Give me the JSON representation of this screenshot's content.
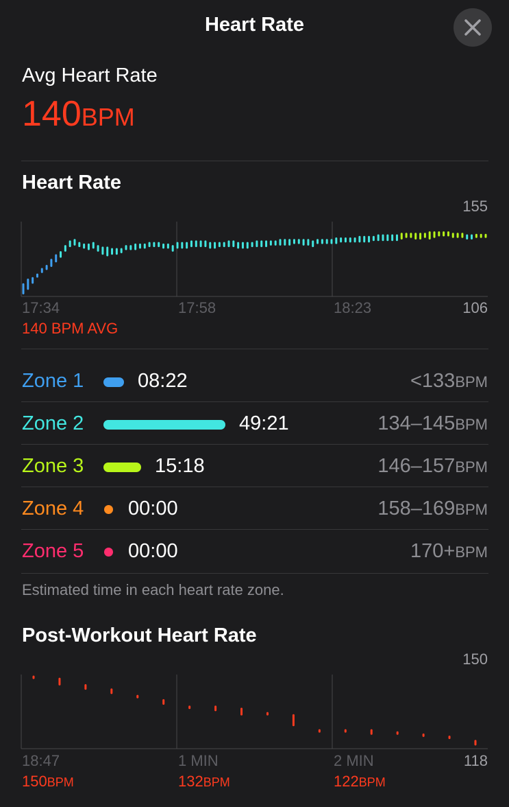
{
  "header": {
    "title": "Heart Rate"
  },
  "summary": {
    "label": "Avg Heart Rate",
    "value": "140",
    "unit": "BPM"
  },
  "heart_rate_section": {
    "title": "Heart Rate",
    "y_max_label": "155",
    "y_min_label": "106",
    "avg_label": "140 BPM AVG",
    "x_labels": [
      "17:34",
      "17:58",
      "18:23"
    ]
  },
  "zones": [
    {
      "name": "Zone 1",
      "time": "08:22",
      "range": "<133",
      "unit": "BPM",
      "color": "#3f9ff0",
      "fraction": 0.116
    },
    {
      "name": "Zone 2",
      "time": "49:21",
      "range": "134–145",
      "unit": "BPM",
      "color": "#42e6e0",
      "fraction": 0.685
    },
    {
      "name": "Zone 3",
      "time": "15:18",
      "range": "146–157",
      "unit": "BPM",
      "color": "#b8f51a",
      "fraction": 0.212
    },
    {
      "name": "Zone 4",
      "time": "00:00",
      "range": "158–169",
      "unit": "BPM",
      "color": "#ff8a1f",
      "fraction": 0
    },
    {
      "name": "Zone 5",
      "time": "00:00",
      "range": "170+",
      "unit": "BPM",
      "color": "#ff2d6e",
      "fraction": 0
    }
  ],
  "zone_note": "Estimated time in each heart rate zone.",
  "post_workout": {
    "title": "Post-Workout Heart Rate",
    "y_max_label": "150",
    "y_min_label": "118",
    "x_labels": [
      "18:47",
      "1 MIN",
      "2 MIN"
    ],
    "values": [
      {
        "value": "150",
        "unit": "BPM"
      },
      {
        "value": "132",
        "unit": "BPM"
      },
      {
        "value": "122",
        "unit": "BPM"
      }
    ]
  },
  "chart_data": [
    {
      "type": "bar",
      "title": "Heart Rate",
      "ylim": [
        106,
        155
      ],
      "x_tick_labels": [
        "17:34",
        "17:58",
        "18:23"
      ],
      "values_low": [
        108,
        111,
        115,
        119,
        122,
        124,
        126,
        129,
        132,
        136,
        139,
        140,
        139,
        138,
        137,
        138,
        136,
        134,
        133,
        134,
        134,
        135,
        137,
        137,
        137,
        138,
        138,
        139,
        139,
        139,
        138,
        138,
        136,
        138,
        138,
        138,
        139,
        139,
        139,
        139,
        138,
        138,
        139,
        139,
        139,
        139,
        138,
        138,
        138,
        139,
        139,
        139,
        139,
        140,
        140,
        140,
        140,
        140,
        141,
        141,
        140,
        140,
        139,
        141,
        141,
        141,
        141,
        141,
        142,
        142,
        142,
        142,
        142,
        142,
        142,
        143,
        143,
        143,
        143,
        143,
        143,
        144,
        145,
        145,
        144,
        144,
        145,
        144,
        145,
        146,
        146,
        146,
        145,
        145,
        145,
        144,
        144,
        145,
        145,
        145
      ],
      "values_high": [
        114,
        117,
        118,
        120,
        124,
        126,
        130,
        133,
        135,
        139,
        142,
        143,
        141,
        140,
        140,
        141,
        139,
        138,
        138,
        137,
        137,
        137,
        139,
        139,
        140,
        140,
        140,
        141,
        141,
        141,
        140,
        140,
        139,
        141,
        141,
        141,
        142,
        142,
        142,
        142,
        141,
        141,
        141,
        141,
        142,
        142,
        141,
        141,
        141,
        141,
        142,
        142,
        142,
        142,
        142,
        143,
        143,
        143,
        143,
        143,
        143,
        143,
        142,
        143,
        143,
        143,
        143,
        144,
        144,
        144,
        144,
        144,
        145,
        145,
        145,
        145,
        146,
        146,
        146,
        146,
        146,
        147,
        147,
        147,
        147,
        147,
        147,
        148,
        148,
        148,
        148,
        148,
        147,
        147,
        147,
        146,
        146,
        146,
        146,
        146
      ]
    },
    {
      "type": "scatter",
      "title": "Post-Workout Heart Rate",
      "ylim": [
        118,
        150
      ],
      "x_tick_labels": [
        "18:47",
        "1 MIN",
        "2 MIN"
      ],
      "values_low": [
        150,
        147,
        145,
        143,
        141,
        138,
        136,
        135,
        133,
        133,
        128,
        125,
        125,
        124,
        124,
        123,
        122,
        119
      ],
      "values_high": [
        150,
        149,
        146,
        144,
        141,
        139,
        136,
        136,
        135,
        133,
        132,
        125,
        125,
        125,
        124,
        123,
        122,
        120
      ]
    }
  ]
}
